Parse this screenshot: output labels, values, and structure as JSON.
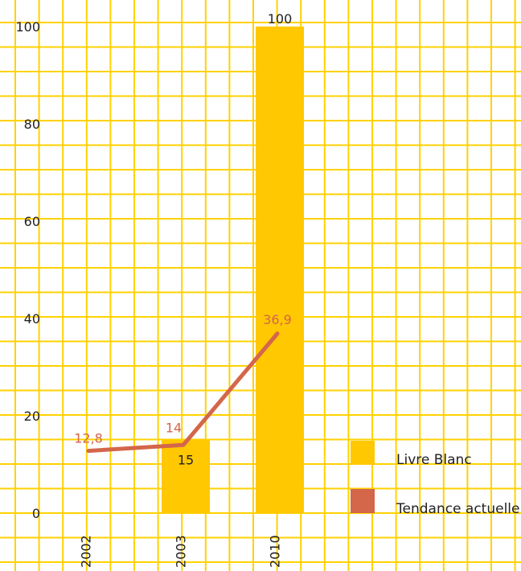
{
  "chart_data": {
    "type": "bar",
    "categories": [
      "2002",
      "2003",
      "2010"
    ],
    "ylim": [
      0,
      100
    ],
    "yticks": [
      "0",
      "20",
      "40",
      "60",
      "80",
      "100"
    ],
    "grid": true,
    "legend_position": "bottom-right",
    "series": [
      {
        "name": "Livre Blanc",
        "kind": "bar",
        "color": "#FFC800",
        "values": [
          null,
          15,
          100
        ],
        "labels": [
          "",
          "15",
          "100"
        ]
      },
      {
        "name": "Tendance actuelle",
        "kind": "line",
        "color": "#D4664A",
        "values": [
          12.8,
          14,
          36.9
        ],
        "labels": [
          "12,8",
          "14",
          "36,9"
        ]
      }
    ]
  },
  "colors": {
    "grid": "#FFD200",
    "axis_text": "#222222",
    "line_label": "#D4664A"
  }
}
